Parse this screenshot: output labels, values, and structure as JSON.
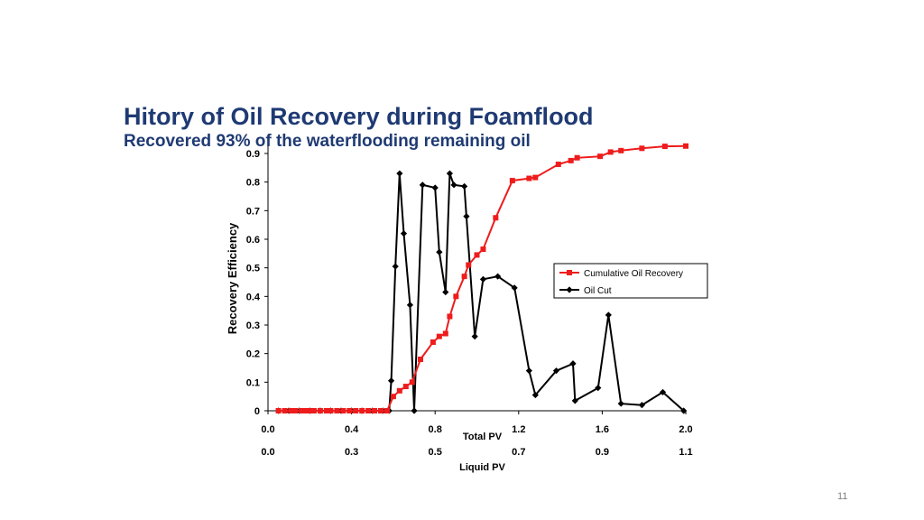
{
  "slide": {
    "title": "Hitory of Oil Recovery during Foamflood",
    "subtitle": "Recovered 93% of the waterflooding remaining oil",
    "page_number": "11"
  },
  "colors": {
    "title": "#1f3a73",
    "recovery_series": "#ee1c1c",
    "oilcut_series": "#000000",
    "axis": "#000000"
  },
  "chart_data": {
    "type": "line",
    "title": "",
    "ylabel": "Recovery Efficiency",
    "xlabel": "Total PV",
    "x2label": "Liquid PV",
    "xlim": [
      0.0,
      2.0
    ],
    "ylim": [
      0,
      0.9
    ],
    "xticks": [
      "0.0",
      "0.4",
      "0.8",
      "1.2",
      "1.6",
      "2.0"
    ],
    "x2ticks": [
      "0.0",
      "0.3",
      "0.5",
      "0.7",
      "0.9",
      "1.1"
    ],
    "yticks": [
      "0",
      "0.1",
      "0.2",
      "0.3",
      "0.4",
      "0.5",
      "0.6",
      "0.7",
      "0.8",
      "0.9"
    ],
    "grid": false,
    "legend_position": "right",
    "series": [
      {
        "name": "Cumulative Oil Recovery",
        "marker": "square",
        "x": [
          0.05,
          0.08,
          0.11,
          0.13,
          0.16,
          0.18,
          0.2,
          0.22,
          0.25,
          0.28,
          0.3,
          0.33,
          0.36,
          0.39,
          0.42,
          0.45,
          0.48,
          0.51,
          0.54,
          0.57,
          0.6,
          0.63,
          0.66,
          0.69,
          0.73,
          0.79,
          0.82,
          0.85,
          0.87,
          0.9,
          0.94,
          0.96,
          1.0,
          1.03,
          1.09,
          1.17,
          1.25,
          1.28,
          1.39,
          1.45,
          1.48,
          1.59,
          1.64,
          1.69,
          1.79,
          1.9,
          2.0
        ],
        "y": [
          0,
          0,
          0,
          0,
          0,
          0,
          0,
          0,
          0,
          0,
          0,
          0,
          0,
          0,
          0,
          0,
          0,
          0,
          0,
          0,
          0.05,
          0.07,
          0.085,
          0.1,
          0.18,
          0.24,
          0.26,
          0.27,
          0.33,
          0.4,
          0.47,
          0.51,
          0.545,
          0.565,
          0.675,
          0.805,
          0.813,
          0.816,
          0.862,
          0.875,
          0.885,
          0.89,
          0.905,
          0.91,
          0.918,
          0.925,
          0.926
        ]
      },
      {
        "name": "Oil Cut",
        "marker": "diamond",
        "x": [
          0.05,
          0.1,
          0.15,
          0.2,
          0.25,
          0.3,
          0.35,
          0.4,
          0.45,
          0.5,
          0.55,
          0.58,
          0.59,
          0.61,
          0.63,
          0.65,
          0.68,
          0.7,
          0.74,
          0.8,
          0.82,
          0.85,
          0.87,
          0.89,
          0.94,
          0.95,
          0.99,
          1.03,
          1.1,
          1.18,
          1.25,
          1.28,
          1.38,
          1.46,
          1.47,
          1.58,
          1.63,
          1.69,
          1.79,
          1.89,
          1.99
        ],
        "y": [
          0,
          0,
          0,
          0,
          0,
          0,
          0,
          0,
          0,
          0,
          0,
          0,
          0.105,
          0.505,
          0.83,
          0.62,
          0.37,
          0,
          0.79,
          0.78,
          0.555,
          0.415,
          0.83,
          0.79,
          0.785,
          0.68,
          0.26,
          0.46,
          0.47,
          0.43,
          0.14,
          0.055,
          0.14,
          0.165,
          0.035,
          0.08,
          0.335,
          0.025,
          0.02,
          0.065,
          0
        ]
      }
    ]
  }
}
